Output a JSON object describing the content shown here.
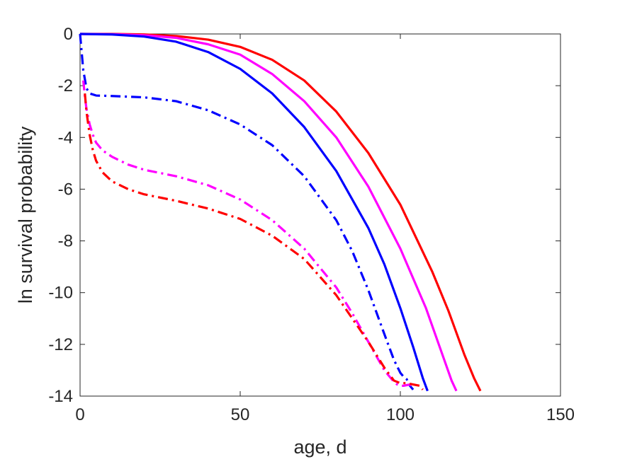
{
  "chart_data": {
    "type": "line",
    "title": "",
    "xlabel": "age, d",
    "ylabel": "ln survival probability",
    "xlim": [
      0,
      150
    ],
    "ylim": [
      -14,
      0
    ],
    "xticks": [
      0,
      50,
      100,
      150
    ],
    "yticks": [
      0,
      -2,
      -4,
      -6,
      -8,
      -10,
      -12,
      -14
    ],
    "grid": false,
    "legend": "none",
    "series": [
      {
        "color": "#ff0000",
        "style": "solid",
        "x": [
          0,
          10,
          20,
          30,
          40,
          50,
          60,
          70,
          80,
          90,
          100,
          110,
          115,
          120,
          123,
          125
        ],
        "y": [
          0,
          0,
          -0.02,
          -0.08,
          -0.22,
          -0.5,
          -1.0,
          -1.8,
          -3.0,
          -4.6,
          -6.6,
          -9.2,
          -10.7,
          -12.4,
          -13.3,
          -13.8
        ]
      },
      {
        "color": "#ff00ff",
        "style": "solid",
        "x": [
          0,
          10,
          20,
          30,
          40,
          50,
          60,
          70,
          80,
          90,
          100,
          108,
          112,
          116,
          117.5
        ],
        "y": [
          0,
          -0.01,
          -0.05,
          -0.15,
          -0.4,
          -0.8,
          -1.55,
          -2.6,
          -4.0,
          -5.9,
          -8.3,
          -10.6,
          -12.0,
          -13.4,
          -13.8
        ]
      },
      {
        "color": "#0000ff",
        "style": "solid",
        "x": [
          0,
          10,
          20,
          30,
          40,
          50,
          60,
          70,
          80,
          90,
          95,
          100,
          104,
          107,
          108.5
        ],
        "y": [
          0,
          -0.02,
          -0.1,
          -0.3,
          -0.7,
          -1.35,
          -2.3,
          -3.6,
          -5.3,
          -7.5,
          -8.9,
          -10.6,
          -12.1,
          -13.3,
          -13.8
        ]
      },
      {
        "color": "#0000ff",
        "style": "dashdot",
        "x": [
          0,
          0.5,
          1,
          2,
          3,
          5,
          10,
          20,
          30,
          40,
          50,
          60,
          70,
          80,
          85,
          90,
          95,
          98,
          100,
          101,
          102,
          103,
          104
        ],
        "y": [
          0,
          -0.7,
          -1.4,
          -2.1,
          -2.3,
          -2.38,
          -2.4,
          -2.45,
          -2.6,
          -2.95,
          -3.5,
          -4.3,
          -5.5,
          -7.2,
          -8.4,
          -9.9,
          -11.6,
          -12.6,
          -13.1,
          -13.25,
          -13.35,
          -13.6,
          -13.75
        ]
      },
      {
        "color": "#ff00ff",
        "style": "dashdot",
        "x": [
          1,
          1.5,
          2,
          3,
          4,
          5,
          7,
          10,
          15,
          20,
          30,
          40,
          50,
          60,
          70,
          80,
          85,
          90,
          95,
          98,
          99,
          100,
          101,
          103,
          104
        ],
        "y": [
          -1.8,
          -2.4,
          -2.9,
          -3.5,
          -3.9,
          -4.2,
          -4.5,
          -4.75,
          -5.05,
          -5.25,
          -5.5,
          -5.85,
          -6.4,
          -7.2,
          -8.3,
          -9.8,
          -10.8,
          -11.9,
          -13.0,
          -13.45,
          -13.55,
          -13.6,
          -13.6,
          -13.55,
          -13.65
        ]
      },
      {
        "color": "#ff0000",
        "style": "dashdot",
        "x": [
          1.5,
          2,
          3,
          4,
          5,
          7,
          10,
          15,
          20,
          30,
          40,
          50,
          60,
          70,
          80,
          85,
          90,
          95,
          98,
          100,
          102,
          104,
          106,
          107
        ],
        "y": [
          -2.3,
          -3.0,
          -3.9,
          -4.5,
          -4.9,
          -5.35,
          -5.7,
          -6.0,
          -6.2,
          -6.45,
          -6.75,
          -7.15,
          -7.8,
          -8.7,
          -10.1,
          -11.0,
          -11.9,
          -12.9,
          -13.4,
          -13.5,
          -13.5,
          -13.55,
          -13.6,
          -13.75
        ]
      }
    ]
  }
}
